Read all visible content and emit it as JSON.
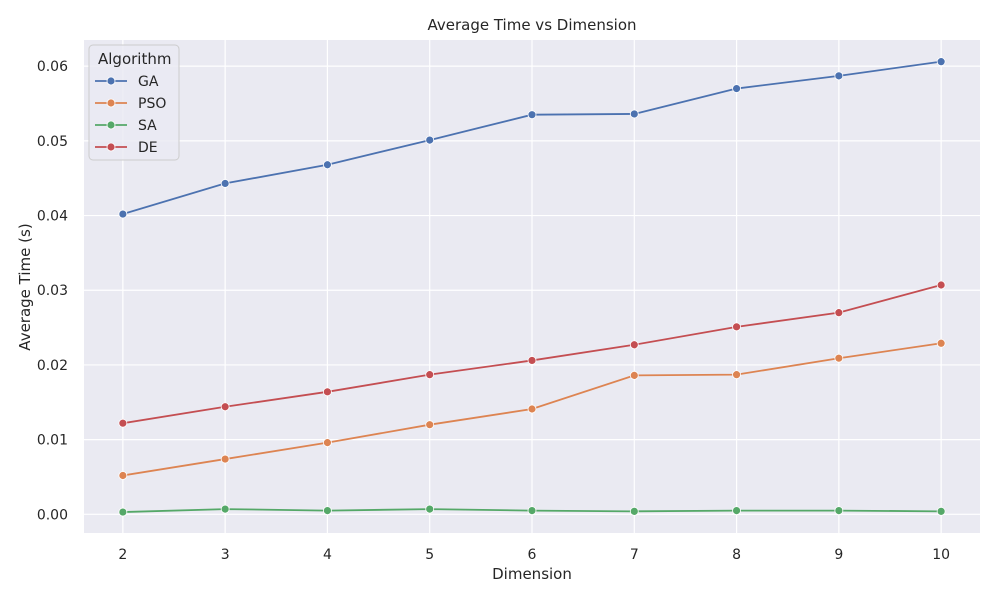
{
  "chart_data": {
    "type": "line",
    "title": "Average Time vs Dimension",
    "xlabel": "Dimension",
    "ylabel": "Average Time (s)",
    "x": [
      2,
      3,
      4,
      5,
      6,
      7,
      8,
      9,
      10
    ],
    "x_ticks": [
      "2",
      "3",
      "4",
      "5",
      "6",
      "7",
      "8",
      "9",
      "10"
    ],
    "y_ticks": [
      "0.00",
      "0.01",
      "0.02",
      "0.03",
      "0.04",
      "0.05",
      "0.06"
    ],
    "xlim": [
      1.62,
      10.38
    ],
    "ylim": [
      -0.0025,
      0.0635
    ],
    "grid": true,
    "legend": {
      "title": "Algorithm",
      "placement": "top-left"
    },
    "series": [
      {
        "name": "GA",
        "color": "#4c72b0",
        "values": [
          0.0402,
          0.0443,
          0.0468,
          0.0501,
          0.0535,
          0.0536,
          0.057,
          0.0587,
          0.0606
        ]
      },
      {
        "name": "PSO",
        "color": "#dd8452",
        "values": [
          0.0052,
          0.0074,
          0.0096,
          0.012,
          0.0141,
          0.0186,
          0.0187,
          0.0209,
          0.0229
        ]
      },
      {
        "name": "SA",
        "color": "#55a868",
        "values": [
          0.0003,
          0.0007,
          0.0005,
          0.0007,
          0.0005,
          0.0004,
          0.0005,
          0.0005,
          0.0004
        ]
      },
      {
        "name": "DE",
        "color": "#c44e52",
        "values": [
          0.0122,
          0.0144,
          0.0164,
          0.0187,
          0.0206,
          0.0227,
          0.0251,
          0.027,
          0.0307
        ]
      }
    ],
    "colors": {
      "plot_background": "#eaeaf2",
      "grid": "#ffffff",
      "text": "#262626"
    }
  }
}
